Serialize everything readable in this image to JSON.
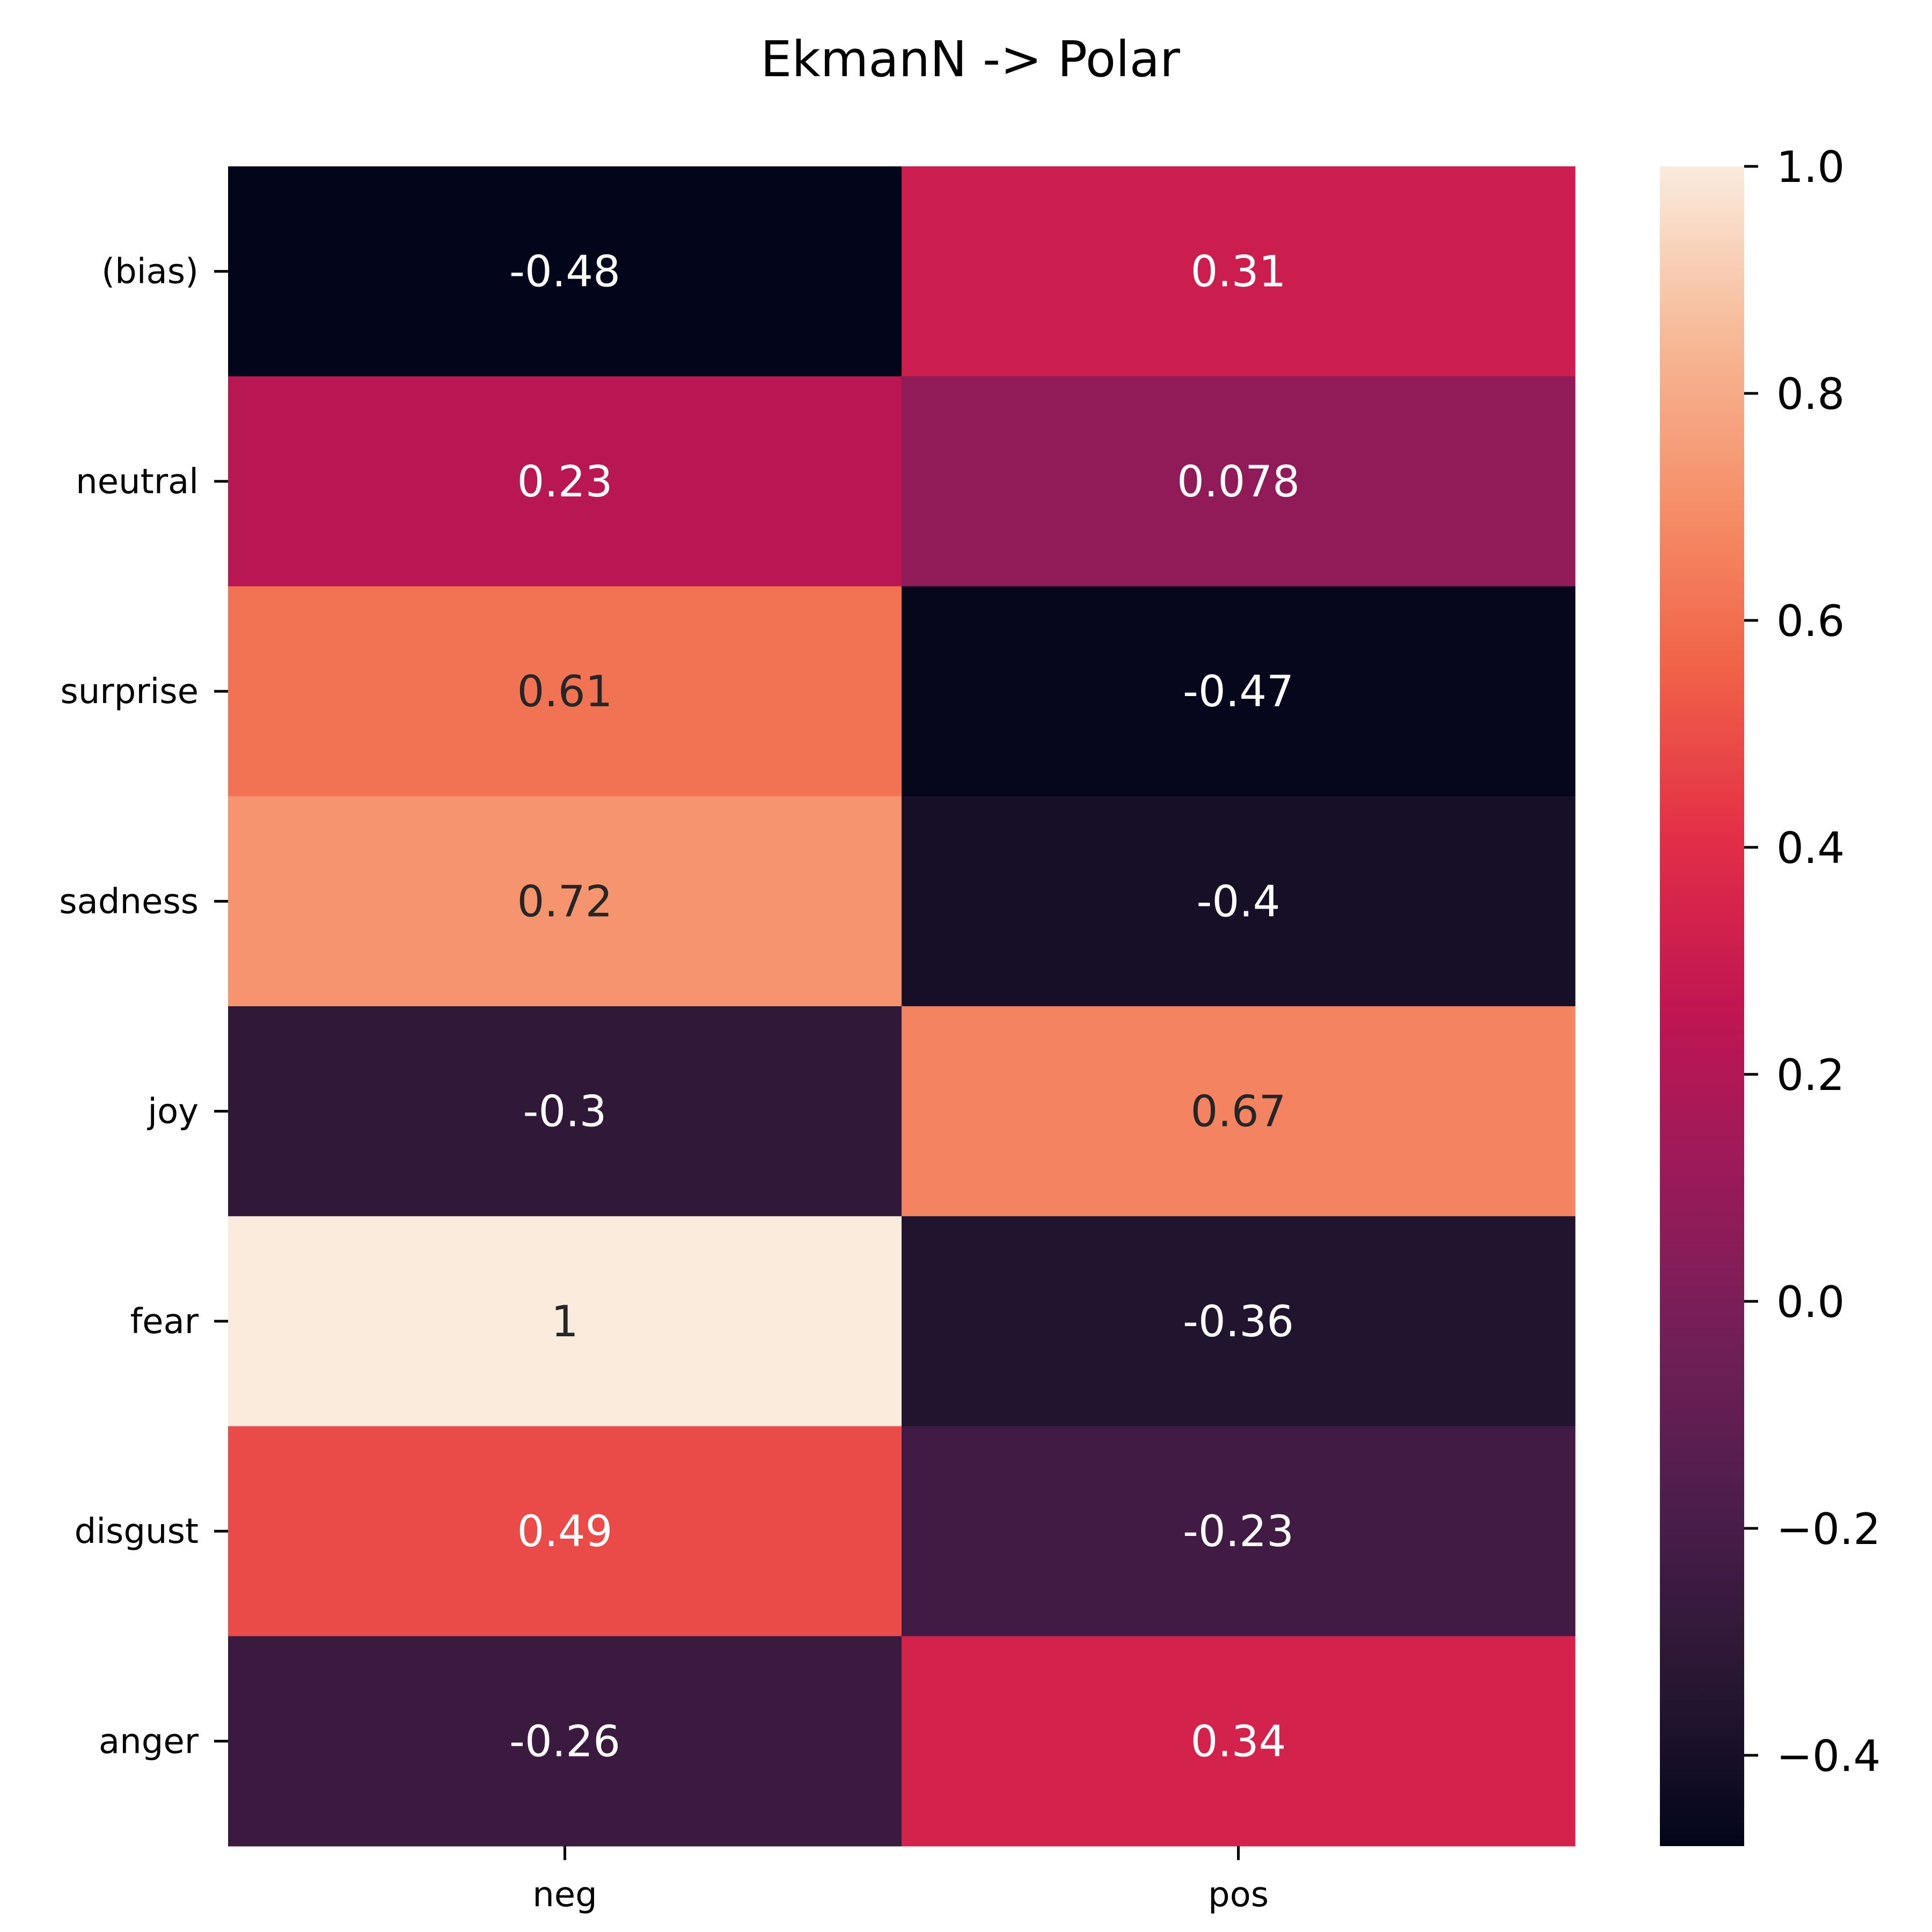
{
  "chart_data": {
    "type": "heatmap",
    "title": "EkmanN -> Polar",
    "xlabel": "",
    "ylabel": "",
    "x_categories": [
      "neg",
      "pos"
    ],
    "y_categories": [
      "(bias)",
      "neutral",
      "surprise",
      "sadness",
      "joy",
      "fear",
      "disgust",
      "anger"
    ],
    "values": [
      [
        -0.48,
        0.31
      ],
      [
        0.23,
        0.078
      ],
      [
        0.61,
        -0.47
      ],
      [
        0.72,
        -0.4
      ],
      [
        -0.3,
        0.67
      ],
      [
        1,
        -0.36
      ],
      [
        0.49,
        -0.23
      ],
      [
        -0.26,
        0.34
      ]
    ],
    "annotations": [
      [
        "-0.48",
        "0.31"
      ],
      [
        "0.23",
        "0.078"
      ],
      [
        "0.61",
        "-0.47"
      ],
      [
        "0.72",
        "-0.4"
      ],
      [
        "-0.3",
        "0.67"
      ],
      [
        "1",
        "-0.36"
      ],
      [
        "0.49",
        "-0.23"
      ],
      [
        "-0.26",
        "0.34"
      ]
    ],
    "colorbar": {
      "range": [
        -0.48,
        1.0
      ],
      "ticks": [
        1.0,
        0.8,
        0.6,
        0.4,
        0.2,
        0.0,
        -0.2,
        -0.4
      ],
      "tick_labels": [
        "1.0",
        "0.8",
        "0.6",
        "0.4",
        "0.2",
        "0.0",
        "−0.2",
        "−0.4"
      ],
      "colormap": "rocket"
    },
    "grid": false,
    "legend": "colorbar-right"
  }
}
